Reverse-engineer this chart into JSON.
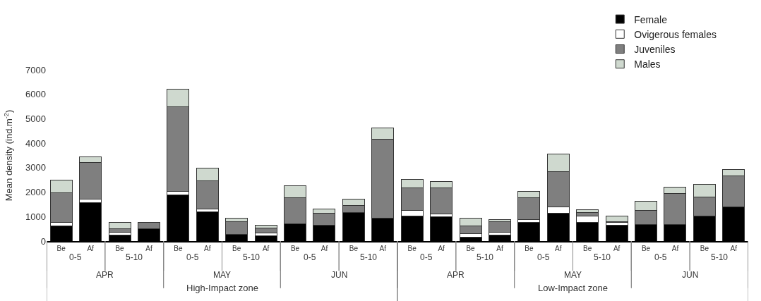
{
  "chart_data": {
    "type": "bar",
    "stacked": true,
    "ylabel": "Mean density (ind.m$^{-2}$)",
    "categories": [
      "Be",
      "Af",
      "Be",
      "Af",
      "Be",
      "Af",
      "Be",
      "Af",
      "Be",
      "Af",
      "Be",
      "Af",
      "Be",
      "Af",
      "Be",
      "Af",
      "Be",
      "Af",
      "Be",
      "Af",
      "Be",
      "Af",
      "Be",
      "Af"
    ],
    "series": [
      {
        "name": "Female",
        "color": "#000000",
        "values": [
          620,
          1580,
          240,
          500,
          1900,
          1200,
          270,
          210,
          720,
          650,
          1160,
          940,
          1020,
          980,
          160,
          250,
          760,
          1150,
          760,
          640,
          680,
          680,
          1020,
          1410
        ]
      },
      {
        "name": "Ovigerous females",
        "color": "#ffffff",
        "values": [
          130,
          120,
          130,
          0,
          120,
          120,
          0,
          120,
          0,
          0,
          0,
          0,
          230,
          120,
          130,
          120,
          120,
          240,
          260,
          120,
          0,
          0,
          0,
          0
        ]
      },
      {
        "name": "Juveniles",
        "color": "#7f7f7f",
        "values": [
          1220,
          1520,
          130,
          270,
          3480,
          1140,
          530,
          200,
          1050,
          490,
          300,
          3220,
          920,
          1070,
          340,
          410,
          880,
          1440,
          140,
          30,
          580,
          1260,
          780,
          1250
        ]
      },
      {
        "name": "Males",
        "color": "#cfd9cf",
        "values": [
          530,
          230,
          270,
          0,
          720,
          520,
          140,
          120,
          490,
          160,
          260,
          450,
          350,
          260,
          310,
          110,
          260,
          720,
          120,
          220,
          370,
          250,
          520,
          250
        ]
      }
    ],
    "annotations": [
      "0-5",
      "5-10",
      "0-5",
      "5-10",
      "0-5",
      "5-10",
      "0-5",
      "5-10",
      "0-5",
      "5-10",
      "0-5",
      "5-10",
      "APR",
      "MAY",
      "JUN",
      "APR",
      "MAY",
      "JUN",
      "High-Impact zone",
      "Low-Impact zone"
    ],
    "ylim": [
      0,
      7000
    ],
    "yticks": [
      0,
      1000,
      2000,
      3000,
      4000,
      5000,
      6000,
      7000
    ],
    "legend": "top right"
  }
}
